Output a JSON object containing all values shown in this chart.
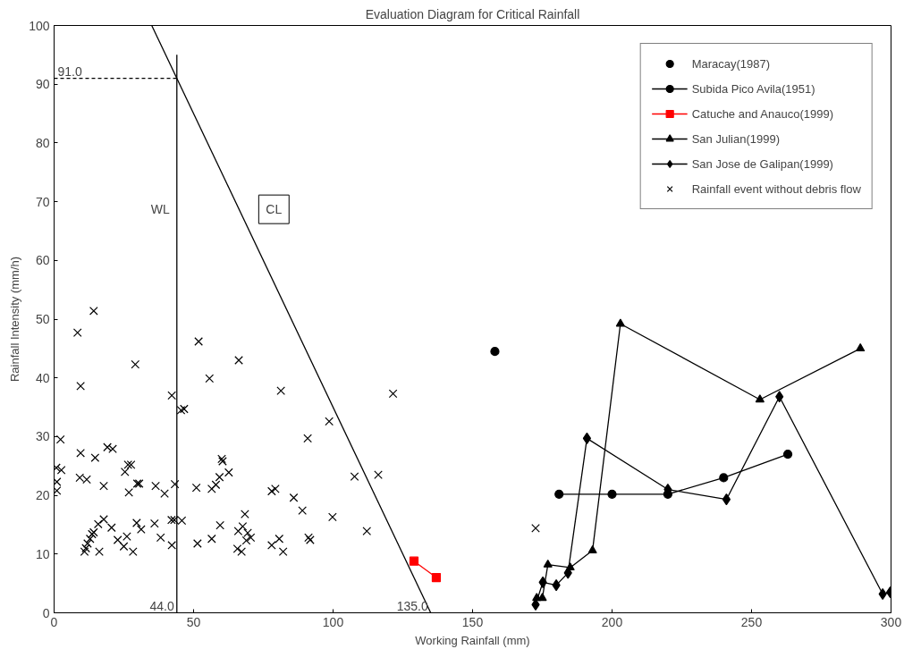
{
  "chart_data": {
    "type": "scatter",
    "title": "Evaluation Diagram for Critical Rainfall",
    "xlabel": "Working Rainfall (mm)",
    "ylabel": "Rainfall Intensity (mm/h)",
    "xlim": [
      0,
      300
    ],
    "ylim": [
      0,
      100
    ],
    "xticks": [
      0,
      50,
      100,
      150,
      200,
      250,
      300
    ],
    "yticks": [
      0,
      10,
      20,
      30,
      40,
      50,
      60,
      70,
      80,
      90,
      100
    ],
    "grid": false,
    "legend": "top right",
    "series": [
      {
        "name": "Maracay(1987)",
        "marker": "circle",
        "color": "#000000",
        "x": [
          158
        ],
        "values": [
          44.5
        ]
      },
      {
        "name": "Subida Pico Avila(1951)",
        "type": "line",
        "marker": "circle",
        "color": "#000000",
        "x": [
          181,
          200,
          220,
          240,
          263
        ],
        "values": [
          20.2,
          20.2,
          20.2,
          23,
          27
        ]
      },
      {
        "name": "Catuche and Anauco(1999)",
        "type": "line",
        "marker": "square",
        "color": "#ff0000",
        "x": [
          129,
          137
        ],
        "values": [
          8.8,
          6
        ]
      },
      {
        "name": "San Julian(1999)",
        "type": "line",
        "marker": "triangle",
        "color": "#000000",
        "x": [
          173,
          175,
          177,
          185,
          193,
          203,
          253,
          289
        ],
        "values": [
          2.5,
          2.5,
          8.2,
          7.7,
          10.6,
          49.2,
          36.3,
          45
        ]
      },
      {
        "name": "San Jose de Galipan(1999)",
        "type": "line",
        "marker": "diamond",
        "color": "#000000",
        "x": [
          172.6,
          175.2,
          180,
          184.2,
          191,
          220,
          241,
          260,
          297,
          299.7
        ],
        "values": [
          1.4,
          5.2,
          4.7,
          6.8,
          29.7,
          21,
          19.3,
          36.8,
          3.2,
          3.5
        ]
      },
      {
        "name": "Rainfall event without debris flow",
        "marker": "cross",
        "color": "#000000",
        "x": [
          14.2,
          8.4,
          9.5,
          29.1,
          42.2,
          46.6,
          45.5,
          51.8,
          55.7,
          2.3,
          0.8,
          2.6,
          1,
          1,
          9.5,
          14.7,
          9.2,
          11.7,
          17.8,
          19.1,
          21,
          25.4,
          26.5,
          27.6,
          26.8,
          29.8,
          30.5,
          36.4,
          39.6,
          43.3,
          51,
          56.5,
          58,
          59.3,
          60.1,
          60.4,
          62.6,
          10.9,
          11.4,
          12,
          12.9,
          13.6,
          14.2,
          16.2,
          15.8,
          17.8,
          20.6,
          22.8,
          25,
          26.1,
          28.3,
          29.6,
          31.2,
          36,
          38.2,
          42.1,
          43.1,
          45.8,
          42.2,
          51.4,
          56.5,
          59.5,
          66.2,
          81.3,
          121.5,
          98.6,
          90.9,
          78,
          79.3,
          85.9,
          89,
          107.7,
          116.2,
          99.8,
          112.1,
          68.4,
          67.6,
          66,
          69.4,
          70.5,
          68.9,
          65.7,
          67.2,
          78,
          80.7,
          82.1,
          91.2,
          91.8,
          172.6
        ],
        "values": [
          51.4,
          47.7,
          38.6,
          42.3,
          37,
          34.7,
          34.5,
          46.2,
          39.9,
          29.5,
          24.7,
          24.3,
          22.3,
          20.8,
          27.2,
          26.4,
          23,
          22.7,
          21.6,
          28.2,
          27.9,
          24,
          25.2,
          25.2,
          20.5,
          22,
          22,
          21.6,
          20.3,
          21.9,
          21.3,
          21.1,
          21.8,
          23.1,
          26.2,
          25.8,
          23.9,
          10.4,
          11,
          11.8,
          12.6,
          13.4,
          13.7,
          10.4,
          15.1,
          15.9,
          14.5,
          12.4,
          11.3,
          13,
          10.4,
          15.3,
          14.2,
          15.2,
          12.8,
          15.8,
          15.8,
          15.7,
          11.5,
          11.8,
          12.6,
          14.9,
          43,
          37.8,
          37.3,
          32.6,
          29.7,
          20.7,
          21.1,
          19.6,
          17.4,
          23.2,
          23.5,
          16.3,
          13.9,
          16.8,
          14.7,
          13.9,
          13.6,
          12.8,
          12.3,
          10.9,
          10.4,
          11.5,
          12.6,
          10.4,
          12.8,
          12.4,
          14.4
        ]
      },
      {
        "name": "CL",
        "type": "line",
        "marker": "none",
        "color": "#000000",
        "x": [
          35,
          135
        ],
        "values": [
          100,
          0
        ]
      },
      {
        "name": "WL",
        "type": "line",
        "marker": "none",
        "color": "#000000",
        "x": [
          44,
          44
        ],
        "values": [
          0,
          95
        ]
      },
      {
        "type": "line",
        "marker": "none",
        "line_style": "dashed",
        "color": "#000000",
        "x": [
          0,
          44
        ],
        "values": [
          91,
          91
        ]
      }
    ],
    "annotations": [
      {
        "text": "91.0",
        "x": 0,
        "y": 91
      },
      {
        "text": "44.0",
        "x": 44,
        "y": 0
      },
      {
        "text": "135.0",
        "x": 135,
        "y": 0
      }
    ]
  }
}
